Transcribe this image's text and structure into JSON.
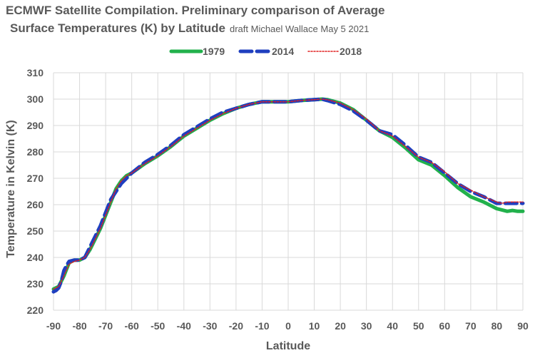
{
  "chart_data": {
    "type": "line",
    "title_line1": "ECMWF Satellite Compilation. Preliminary comparison of Average",
    "title_line2": "Surface Temperatures (K) by Latitude",
    "subtitle": "draft Michael Wallace May 5 2021",
    "xlabel": "Latitude",
    "ylabel": "Temperature in Kelvin (K)",
    "xlim": [
      -90,
      90
    ],
    "ylim": [
      220,
      310
    ],
    "xticks": [
      "-90",
      "-80",
      "-70",
      "-60",
      "-50",
      "-40",
      "-30",
      "-20",
      "-10",
      "0",
      "10",
      "20",
      "30",
      "40",
      "50",
      "60",
      "70",
      "80",
      "90"
    ],
    "yticks": [
      "220",
      "230",
      "240",
      "250",
      "260",
      "270",
      "280",
      "290",
      "300",
      "310"
    ],
    "grid": true,
    "legend": "top",
    "series": [
      {
        "name": "1979",
        "color": "#22b14c",
        "style": "solid",
        "x": [
          -90,
          -88,
          -86,
          -84,
          -82,
          -80,
          -78,
          -76,
          -74,
          -72,
          -70,
          -68,
          -66,
          -64,
          -62,
          -60,
          -55,
          -50,
          -45,
          -40,
          -35,
          -30,
          -25,
          -20,
          -15,
          -10,
          -5,
          0,
          5,
          10,
          13,
          15,
          20,
          25,
          30,
          35,
          40,
          45,
          50,
          55,
          60,
          65,
          70,
          75,
          80,
          82,
          84,
          86,
          88,
          90
        ],
        "y": [
          228,
          229,
          233,
          238,
          239,
          239,
          240,
          243,
          247,
          251,
          256,
          261,
          266,
          269,
          271,
          272,
          275.5,
          278.5,
          282,
          286,
          289,
          292,
          294.5,
          296.5,
          298,
          299,
          299,
          299,
          299.5,
          299.8,
          300,
          299.8,
          298.5,
          296,
          292,
          288,
          285.5,
          281.5,
          277,
          275,
          271,
          266.5,
          263,
          261,
          258.5,
          258,
          257.5,
          257.8,
          257.5,
          257.5
        ]
      },
      {
        "name": "2014",
        "color": "#1f3fbf",
        "style": "dashed",
        "x": [
          -90,
          -89,
          -88,
          -87,
          -86,
          -85,
          -84,
          -82,
          -80,
          -78,
          -76,
          -74,
          -72,
          -70,
          -68,
          -66,
          -64,
          -62,
          -60,
          -55,
          -50,
          -45,
          -40,
          -35,
          -30,
          -25,
          -20,
          -15,
          -10,
          -5,
          0,
          5,
          10,
          13,
          15,
          20,
          25,
          30,
          35,
          40,
          45,
          50,
          55,
          60,
          65,
          70,
          75,
          80,
          82,
          84,
          86,
          88,
          90
        ],
        "y": [
          227,
          227.5,
          228.5,
          231,
          235,
          237,
          238.5,
          239,
          239,
          240,
          244,
          248,
          252,
          257,
          262,
          265,
          268,
          270,
          272,
          276,
          279,
          282.5,
          286.5,
          289.5,
          292.5,
          295,
          296.5,
          298,
          299,
          299,
          299,
          299.5,
          299.8,
          300,
          299.5,
          298,
          295.5,
          292,
          288,
          286.5,
          282.5,
          278,
          276,
          272,
          268,
          265,
          263,
          260.5,
          260.5,
          260.5,
          260.5,
          260.5,
          260.5
        ]
      },
      {
        "name": "2018",
        "color": "#e02020",
        "style": "dotted",
        "x": [
          -90,
          -88,
          -86,
          -84,
          -82,
          -80,
          -78,
          -76,
          -74,
          -72,
          -70,
          -68,
          -66,
          -64,
          -62,
          -60,
          -55,
          -50,
          -45,
          -40,
          -35,
          -30,
          -25,
          -20,
          -15,
          -10,
          -5,
          0,
          5,
          10,
          13,
          15,
          20,
          25,
          30,
          35,
          40,
          45,
          50,
          55,
          60,
          65,
          70,
          75,
          80,
          82,
          84,
          86,
          88,
          90
        ],
        "y": [
          228,
          229,
          233,
          237.5,
          238.5,
          239,
          240,
          243,
          247,
          251,
          256,
          261,
          266,
          269,
          271,
          272,
          275.5,
          278.5,
          282,
          286,
          289,
          292,
          294.5,
          296.5,
          298,
          299,
          299,
          299,
          299.5,
          299.8,
          300,
          299.8,
          298.5,
          296,
          292.5,
          288,
          286,
          282,
          278,
          276,
          272.5,
          268,
          265.5,
          263,
          261,
          260.5,
          261,
          261,
          261,
          261
        ]
      }
    ]
  }
}
